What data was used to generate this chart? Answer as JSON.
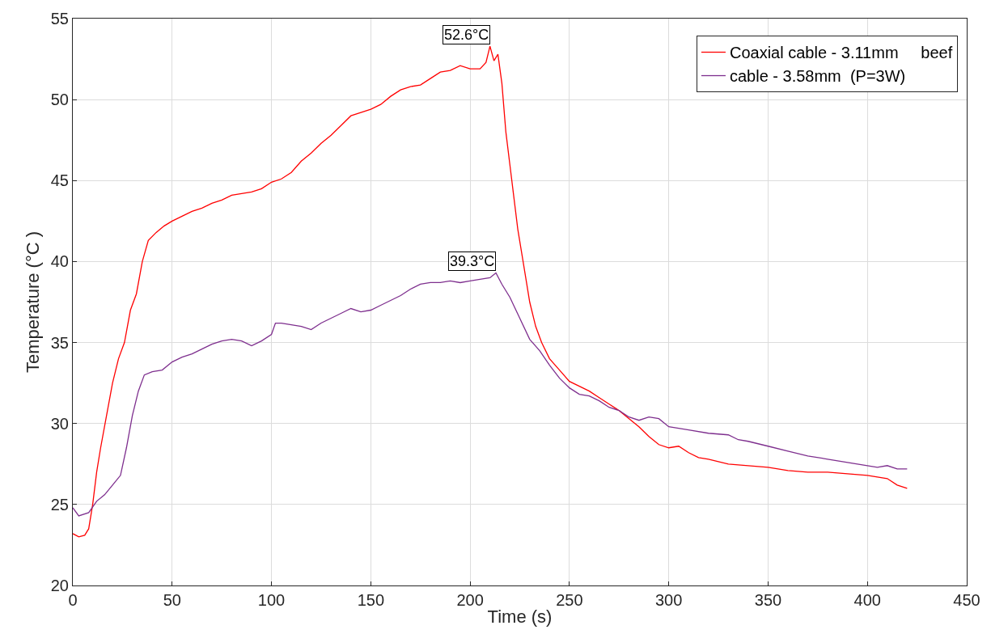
{
  "chart_data": {
    "type": "line",
    "xlabel": "Time (s)",
    "ylabel": "Temperature (°C )",
    "xlim": [
      0,
      450
    ],
    "xticks": [
      0,
      50,
      100,
      150,
      200,
      250,
      300,
      350,
      400,
      450
    ],
    "ylim": [
      20,
      55
    ],
    "yticks": [
      20,
      25,
      30,
      35,
      40,
      45,
      50,
      55
    ],
    "grid": true,
    "legend": "top right",
    "annotations": [
      {
        "text": "52.6°C",
        "x": 210,
        "y": 53.3
      },
      {
        "text": "39.3°C",
        "x": 213,
        "y": 39.3
      }
    ],
    "series": [
      {
        "name": "Coaxial cable - 3.11mm     beef",
        "color": "#ff0000",
        "x": [
          0,
          3,
          6,
          8,
          10,
          12,
          14,
          17,
          20,
          23,
          26,
          29,
          32,
          35,
          38,
          42,
          46,
          50,
          55,
          60,
          65,
          70,
          75,
          80,
          85,
          90,
          95,
          100,
          105,
          110,
          115,
          120,
          125,
          130,
          135,
          140,
          145,
          150,
          155,
          160,
          165,
          170,
          175,
          180,
          185,
          190,
          195,
          200,
          205,
          208,
          210,
          212,
          214,
          216,
          218,
          220,
          222,
          224,
          226,
          228,
          230,
          233,
          236,
          240,
          245,
          250,
          255,
          260,
          265,
          270,
          275,
          280,
          285,
          290,
          295,
          300,
          305,
          310,
          315,
          320,
          330,
          340,
          350,
          360,
          370,
          380,
          390,
          400,
          410,
          415,
          420
        ],
        "values": [
          23.2,
          23.0,
          23.1,
          23.5,
          25,
          27,
          28.5,
          30.5,
          32.5,
          34,
          35,
          37,
          38,
          40,
          41.3,
          41.8,
          42.2,
          42.5,
          42.8,
          43.1,
          43.3,
          43.6,
          43.8,
          44.1,
          44.2,
          44.3,
          44.5,
          44.9,
          45.1,
          45.5,
          46.2,
          46.7,
          47.3,
          47.8,
          48.4,
          49,
          49.2,
          49.4,
          49.7,
          50.2,
          50.6,
          50.8,
          50.9,
          51.3,
          51.7,
          51.8,
          52.1,
          51.9,
          51.9,
          52.3,
          53.3,
          52.4,
          52.8,
          51,
          48,
          46,
          44,
          42,
          40.5,
          39,
          37.5,
          36,
          35,
          34,
          33.3,
          32.6,
          32.3,
          32,
          31.6,
          31.2,
          30.8,
          30.3,
          29.8,
          29.2,
          28.7,
          28.5,
          28.6,
          28.2,
          27.9,
          27.8,
          27.5,
          27.4,
          27.3,
          27.1,
          27.0,
          27.0,
          26.9,
          26.8,
          26.6,
          26.2,
          26.0
        ]
      },
      {
        "name": "cable - 3.58mm  (P=3W)",
        "color": "#7e2f8e",
        "x": [
          0,
          3,
          8,
          12,
          16,
          20,
          24,
          27,
          30,
          33,
          36,
          40,
          45,
          50,
          55,
          60,
          65,
          70,
          75,
          80,
          85,
          90,
          95,
          100,
          102,
          105,
          110,
          115,
          120,
          125,
          130,
          135,
          140,
          145,
          150,
          155,
          160,
          165,
          170,
          175,
          180,
          185,
          190,
          195,
          200,
          205,
          210,
          213,
          216,
          220,
          225,
          230,
          235,
          240,
          245,
          250,
          255,
          260,
          265,
          270,
          275,
          280,
          285,
          290,
          295,
          300,
          305,
          310,
          320,
          330,
          335,
          340,
          350,
          360,
          370,
          380,
          390,
          400,
          405,
          410,
          415,
          420
        ],
        "values": [
          24.8,
          24.3,
          24.5,
          25.2,
          25.6,
          26.2,
          26.8,
          28.5,
          30.5,
          32,
          33,
          33.2,
          33.3,
          33.8,
          34.1,
          34.3,
          34.6,
          34.9,
          35.1,
          35.2,
          35.1,
          34.8,
          35.1,
          35.5,
          36.2,
          36.2,
          36.1,
          36.0,
          35.8,
          36.2,
          36.5,
          36.8,
          37.1,
          36.9,
          37.0,
          37.3,
          37.6,
          37.9,
          38.3,
          38.6,
          38.7,
          38.7,
          38.8,
          38.7,
          38.8,
          38.9,
          39.0,
          39.3,
          38.6,
          37.8,
          36.5,
          35.2,
          34.5,
          33.6,
          32.8,
          32.2,
          31.8,
          31.7,
          31.4,
          31.0,
          30.8,
          30.4,
          30.2,
          30.4,
          30.3,
          29.8,
          29.7,
          29.6,
          29.4,
          29.3,
          29.0,
          28.9,
          28.6,
          28.3,
          28.0,
          27.8,
          27.6,
          27.4,
          27.3,
          27.4,
          27.2,
          27.2
        ]
      }
    ]
  }
}
